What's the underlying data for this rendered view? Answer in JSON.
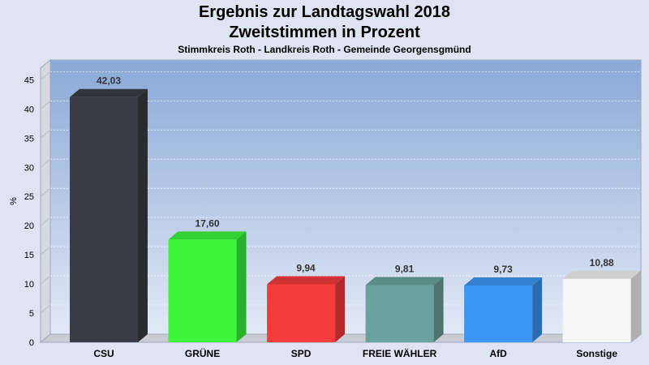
{
  "chart_data": {
    "type": "bar",
    "title": "Ergebnis zur Landtagswahl 2018",
    "subtitle": "Zweitstimmen in Prozent",
    "caption": "Stimmkreis Roth - Landkreis Roth - Gemeinde Georgensgmünd",
    "ylabel": "%",
    "xlabel": "",
    "ylim": [
      0,
      47
    ],
    "yticks": [
      "0",
      "5",
      "10",
      "15",
      "20",
      "25",
      "30",
      "35",
      "40",
      "45"
    ],
    "grid": true,
    "categories": [
      "CSU",
      "GRÜNE",
      "SPD",
      "FREIE WÄHLER",
      "AfD",
      "Sonstige"
    ],
    "values": [
      42.03,
      17.6,
      9.94,
      9.81,
      9.73,
      10.88
    ],
    "value_labels": [
      "42,03",
      "17,60",
      "9,94",
      "9,81",
      "9,73",
      "10,88"
    ],
    "colors": [
      "#3a3d45",
      "#3cf53c",
      "#f53c3c",
      "#6aa39d",
      "#3c96f5",
      "#f5f5f5"
    ]
  }
}
